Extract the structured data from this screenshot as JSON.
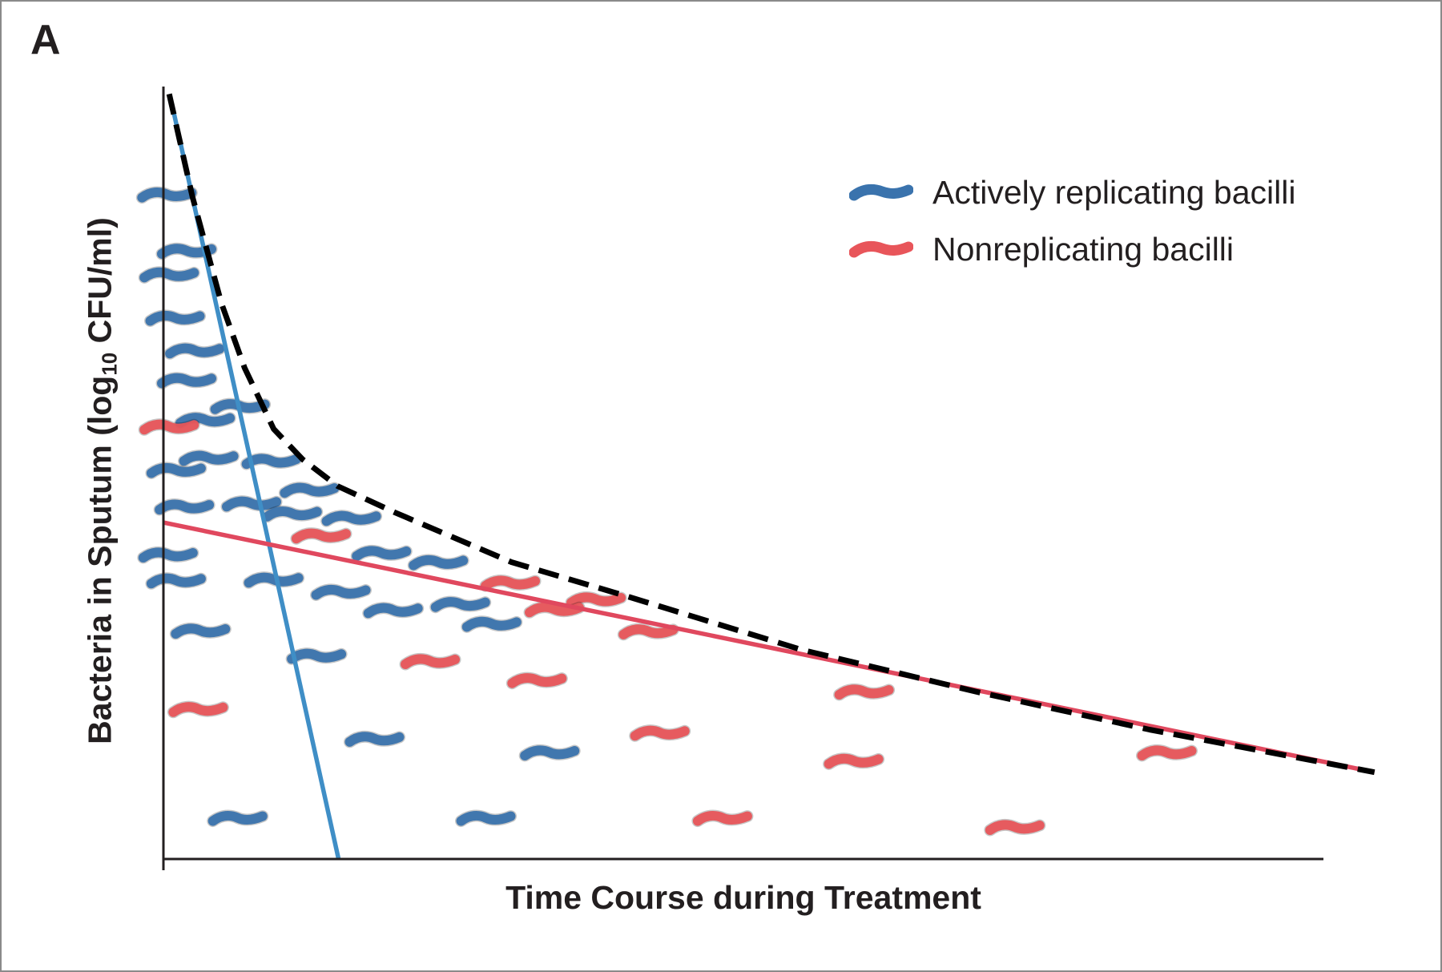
{
  "panel_label": "A",
  "chart_data": {
    "type": "line",
    "title": "",
    "xlabel": "Time Course during Treatment",
    "ylabel_main": "Bacteria in Sputum (log",
    "ylabel_sub": "10",
    "ylabel_end": " CFU/ml)",
    "xlim": [
      0,
      100
    ],
    "ylim": [
      0,
      100
    ],
    "grid": false,
    "ticks": false,
    "legend_position": "top-right",
    "colors": {
      "active": "#3a73ad",
      "active_line": "#3f8ec6",
      "nonreplicating": "#e8555a",
      "nonreplicating_line": "#e0485e",
      "combined": "#000000",
      "axis": "#231f20"
    },
    "legend": [
      {
        "label": "Actively replicating bacilli",
        "color": "#3a73ad"
      },
      {
        "label": "Nonreplicating bacilli",
        "color": "#e8555a"
      }
    ],
    "series": [
      {
        "key": "active",
        "style": "solid",
        "points": [
          [
            0.7,
            99.4
          ],
          [
            15.1,
            0
          ]
        ]
      },
      {
        "key": "nonreplicating",
        "style": "solid",
        "points": [
          [
            0,
            44.2
          ],
          [
            104.4,
            11.4
          ]
        ]
      },
      {
        "key": "combined",
        "style": "dashed",
        "points": [
          [
            0.5,
            100.5
          ],
          [
            2.5,
            87
          ],
          [
            5,
            73
          ],
          [
            7,
            64.5
          ],
          [
            9.5,
            56.5
          ],
          [
            12,
            52.5
          ],
          [
            15,
            49
          ],
          [
            20,
            45.5
          ],
          [
            30,
            39
          ],
          [
            40,
            34.5
          ],
          [
            55,
            27.5
          ],
          [
            70,
            22
          ],
          [
            85,
            17
          ],
          [
            104.4,
            11.4
          ]
        ]
      }
    ],
    "bacilli": [
      {
        "t": "a",
        "x": 0.3,
        "y": 87.2
      },
      {
        "t": "a",
        "x": 2.0,
        "y": 79.8
      },
      {
        "t": "a",
        "x": 0.5,
        "y": 76.7
      },
      {
        "t": "a",
        "x": 1.0,
        "y": 71.0
      },
      {
        "t": "a",
        "x": 2.7,
        "y": 66.7
      },
      {
        "t": "a",
        "x": 2.0,
        "y": 62.8
      },
      {
        "t": "a",
        "x": 6.6,
        "y": 59.4
      },
      {
        "t": "a",
        "x": 3.6,
        "y": 57.6
      },
      {
        "t": "n",
        "x": 0.5,
        "y": 56.7
      },
      {
        "t": "a",
        "x": 9.3,
        "y": 52.2
      },
      {
        "t": "a",
        "x": 3.9,
        "y": 52.6
      },
      {
        "t": "a",
        "x": 1.1,
        "y": 51.0
      },
      {
        "t": "a",
        "x": 12.6,
        "y": 48.4
      },
      {
        "t": "a",
        "x": 7.6,
        "y": 46.6
      },
      {
        "t": "a",
        "x": 1.8,
        "y": 46.2
      },
      {
        "t": "a",
        "x": 11.1,
        "y": 45.3
      },
      {
        "t": "a",
        "x": 16.2,
        "y": 44.7
      },
      {
        "t": "n",
        "x": 13.6,
        "y": 42.4
      },
      {
        "t": "a",
        "x": 0.4,
        "y": 39.9
      },
      {
        "t": "a",
        "x": 18.8,
        "y": 40.1
      },
      {
        "t": "a",
        "x": 23.7,
        "y": 38.9
      },
      {
        "t": "a",
        "x": 1.1,
        "y": 36.5
      },
      {
        "t": "a",
        "x": 9.5,
        "y": 36.6
      },
      {
        "t": "n",
        "x": 29.9,
        "y": 36.2
      },
      {
        "t": "a",
        "x": 15.3,
        "y": 35.0
      },
      {
        "t": "n",
        "x": 37.3,
        "y": 34.0
      },
      {
        "t": "a",
        "x": 25.6,
        "y": 33.4
      },
      {
        "t": "a",
        "x": 19.8,
        "y": 32.6
      },
      {
        "t": "n",
        "x": 33.7,
        "y": 32.7
      },
      {
        "t": "a",
        "x": 28.3,
        "y": 30.8
      },
      {
        "t": "n",
        "x": 41.8,
        "y": 29.8
      },
      {
        "t": "a",
        "x": 3.2,
        "y": 29.9
      },
      {
        "t": "a",
        "x": 13.2,
        "y": 26.6
      },
      {
        "t": "n",
        "x": 23.0,
        "y": 25.9
      },
      {
        "t": "n",
        "x": 32.2,
        "y": 23.4
      },
      {
        "t": "n",
        "x": 60.4,
        "y": 21.9
      },
      {
        "t": "n",
        "x": 3.0,
        "y": 19.6
      },
      {
        "t": "n",
        "x": 42.8,
        "y": 16.5
      },
      {
        "t": "a",
        "x": 18.2,
        "y": 15.7
      },
      {
        "t": "n",
        "x": 86.5,
        "y": 13.9
      },
      {
        "t": "a",
        "x": 33.3,
        "y": 13.9
      },
      {
        "t": "n",
        "x": 59.5,
        "y": 12.8
      },
      {
        "t": "a",
        "x": 6.4,
        "y": 5.3
      },
      {
        "t": "a",
        "x": 27.8,
        "y": 5.3
      },
      {
        "t": "n",
        "x": 48.2,
        "y": 5.3
      },
      {
        "t": "n",
        "x": 73.4,
        "y": 4.1
      }
    ]
  }
}
